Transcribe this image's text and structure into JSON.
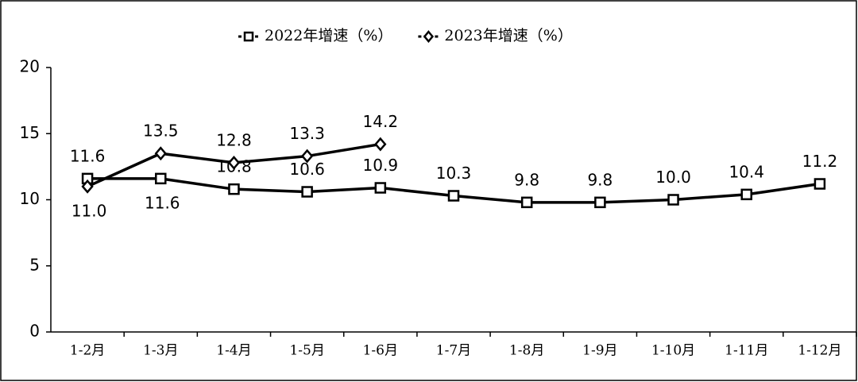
{
  "chart_data": {
    "type": "line",
    "categories": [
      "1-2月",
      "1-3月",
      "1-4月",
      "1-5月",
      "1-6月",
      "1-7月",
      "1-8月",
      "1-9月",
      "1-10月",
      "1-11月",
      "1-12月"
    ],
    "series": [
      {
        "name": "2022年增速（%）",
        "color": "#000000",
        "marker": "square",
        "values": [
          11.6,
          11.6,
          10.8,
          10.6,
          10.9,
          10.3,
          9.8,
          9.8,
          10.0,
          10.4,
          11.2
        ],
        "value_labels": [
          "11.6",
          "11.6",
          "10.8",
          "10.6",
          "10.9",
          "10.3",
          "9.8",
          "9.8",
          "10.0",
          "10.4",
          "11.2"
        ]
      },
      {
        "name": "2023年增速（%）",
        "color": "#000000",
        "marker": "diamond",
        "values": [
          11.0,
          13.5,
          12.8,
          13.3,
          14.2,
          null,
          null,
          null,
          null,
          null,
          null
        ],
        "value_labels": [
          "11.0",
          "13.5",
          "12.8",
          "13.3",
          "14.2",
          null,
          null,
          null,
          null,
          null,
          null
        ]
      }
    ],
    "ylim": [
      0,
      20
    ],
    "yticks": [
      0,
      5,
      10,
      15,
      20
    ],
    "grid": false,
    "legend": "top"
  }
}
